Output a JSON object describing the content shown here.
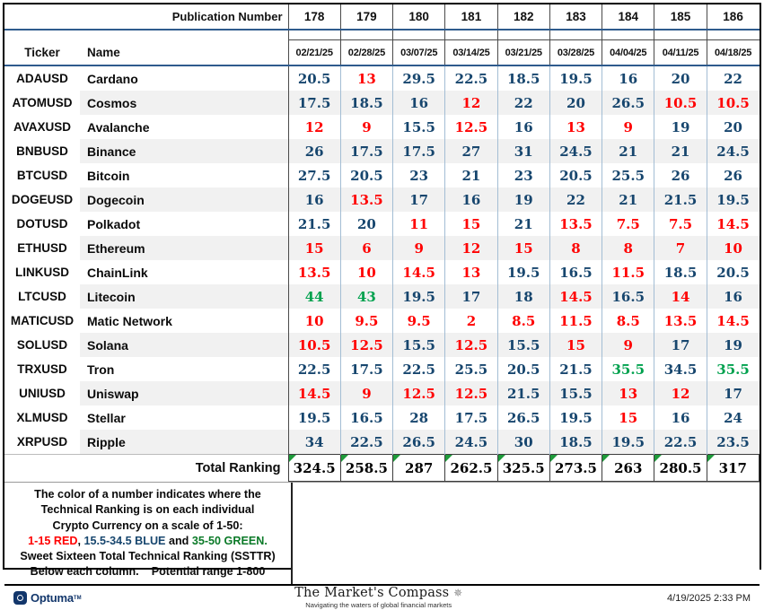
{
  "table": {
    "publication_label": "Publication Number",
    "publications": [
      "178",
      "179",
      "180",
      "181",
      "182",
      "183",
      "184",
      "185",
      "186"
    ],
    "dates": [
      "02/21/25",
      "02/28/25",
      "03/07/25",
      "03/14/25",
      "03/21/25",
      "03/28/25",
      "04/04/25",
      "04/11/25",
      "04/18/25"
    ],
    "ticker_label": "Ticker",
    "name_label": "Name",
    "rows": [
      {
        "ticker": "ADAUSD",
        "name": "Cardano",
        "values": [
          20.5,
          13,
          29.5,
          22.5,
          18.5,
          19.5,
          16,
          20,
          22
        ]
      },
      {
        "ticker": "ATOMUSD",
        "name": "Cosmos",
        "values": [
          17.5,
          18.5,
          16,
          12,
          22,
          20,
          26.5,
          10.5,
          10.5
        ]
      },
      {
        "ticker": "AVAXUSD",
        "name": "Avalanche",
        "values": [
          12,
          9,
          15.5,
          12.5,
          16,
          13,
          9,
          19,
          20
        ]
      },
      {
        "ticker": "BNBUSD",
        "name": "Binance",
        "values": [
          26,
          17.5,
          17.5,
          27,
          31,
          24.5,
          21,
          21,
          24.5
        ]
      },
      {
        "ticker": "BTCUSD",
        "name": "Bitcoin",
        "values": [
          27.5,
          20.5,
          23,
          21,
          23,
          20.5,
          25.5,
          26,
          26
        ]
      },
      {
        "ticker": "DOGEUSD",
        "name": "Dogecoin",
        "values": [
          16,
          13.5,
          17,
          16,
          19,
          22,
          21,
          21.5,
          19.5
        ]
      },
      {
        "ticker": "DOTUSD",
        "name": "Polkadot",
        "values": [
          21.5,
          20,
          11,
          15,
          21,
          13.5,
          7.5,
          7.5,
          14.5
        ]
      },
      {
        "ticker": "ETHUSD",
        "name": "Ethereum",
        "values": [
          15,
          6,
          9,
          12,
          15,
          8,
          8,
          7,
          10
        ]
      },
      {
        "ticker": "LINKUSD",
        "name": "ChainLink",
        "values": [
          13.5,
          10,
          14.5,
          13,
          19.5,
          16.5,
          11.5,
          18.5,
          20.5
        ]
      },
      {
        "ticker": "LTCUSD",
        "name": "Litecoin",
        "values": [
          44,
          43,
          19.5,
          17,
          18,
          14.5,
          16.5,
          14,
          16
        ]
      },
      {
        "ticker": "MATICUSD",
        "name": "Matic Network",
        "values": [
          10,
          9.5,
          9.5,
          2,
          8.5,
          11.5,
          8.5,
          13.5,
          14.5
        ]
      },
      {
        "ticker": "SOLUSD",
        "name": "Solana",
        "values": [
          10.5,
          12.5,
          15.5,
          12.5,
          15.5,
          15,
          9,
          17,
          19
        ]
      },
      {
        "ticker": "TRXUSD",
        "name": "Tron",
        "values": [
          22.5,
          17.5,
          22.5,
          25.5,
          20.5,
          21.5,
          35.5,
          34.5,
          35.5
        ]
      },
      {
        "ticker": "UNIUSD",
        "name": "Uniswap",
        "values": [
          14.5,
          9,
          12.5,
          12.5,
          21.5,
          15.5,
          13,
          12,
          17
        ]
      },
      {
        "ticker": "XLMUSD",
        "name": "Stellar",
        "values": [
          19.5,
          16.5,
          28,
          17.5,
          26.5,
          19.5,
          15,
          16,
          24
        ]
      },
      {
        "ticker": "XRPUSD",
        "name": "Ripple",
        "values": [
          34,
          22.5,
          26.5,
          24.5,
          30,
          18.5,
          19.5,
          22.5,
          23.5
        ]
      }
    ],
    "total_label": "Total Ranking",
    "totals": [
      324.5,
      258.5,
      287,
      262.5,
      325.5,
      273.5,
      263,
      280.5,
      317
    ]
  },
  "ranking_rule": {
    "red_max": 15,
    "green_min": 35
  },
  "legend": {
    "line1": "The color of a number indicates where the",
    "line2": "Technical Ranking is on each individual",
    "line3": "Crypto Currency on a scale of 1-50:",
    "red_range": "1-15 RED",
    "sep1": ", ",
    "blue_range": "15.5-34.5 BLUE",
    "sep2": " and ",
    "green_range": "35-50 GREEN.",
    "line5": "Sweet Sixteen Total Technical Ranking (SSTTR)",
    "line6a": "Below each column.",
    "line6b": "Potential range 1-800"
  },
  "footer": {
    "optuma": "Optuma",
    "tm": "TM",
    "compass_title": "The Market's Compass",
    "compass_icon": "✵",
    "compass_subtitle": "Navigating the waters of global financial markets",
    "timestamp": "4/19/2025 2:33 PM"
  },
  "colors": {
    "red": "#FF0000",
    "blue": "#17466E",
    "green": "#00A14E",
    "legend_green": "#0B7A28",
    "grid_light": "#A3BDD4",
    "grid_dark": "#4A4A4A",
    "header_line": "#2F5B8D",
    "corner_triangle": "#1E9B3B"
  }
}
